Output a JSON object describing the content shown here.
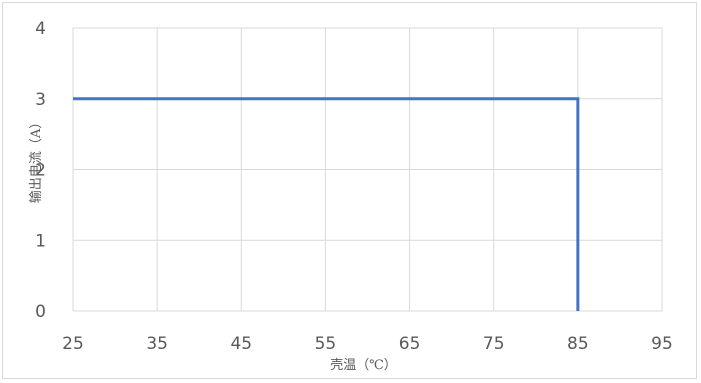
{
  "chart_data": {
    "type": "line",
    "title": "",
    "xlabel": "壳温（℃）",
    "ylabel": "输出电流（A）",
    "xlim": [
      25,
      95
    ],
    "ylim": [
      0,
      4
    ],
    "x_ticks": [
      25,
      35,
      45,
      55,
      65,
      75,
      85,
      95
    ],
    "y_ticks": [
      0,
      1,
      2,
      3,
      4
    ],
    "grid": true,
    "legend": "none",
    "series": [
      {
        "color": "#4472c4",
        "x": [
          25,
          85,
          85
        ],
        "y": [
          3,
          3,
          0
        ]
      }
    ]
  }
}
